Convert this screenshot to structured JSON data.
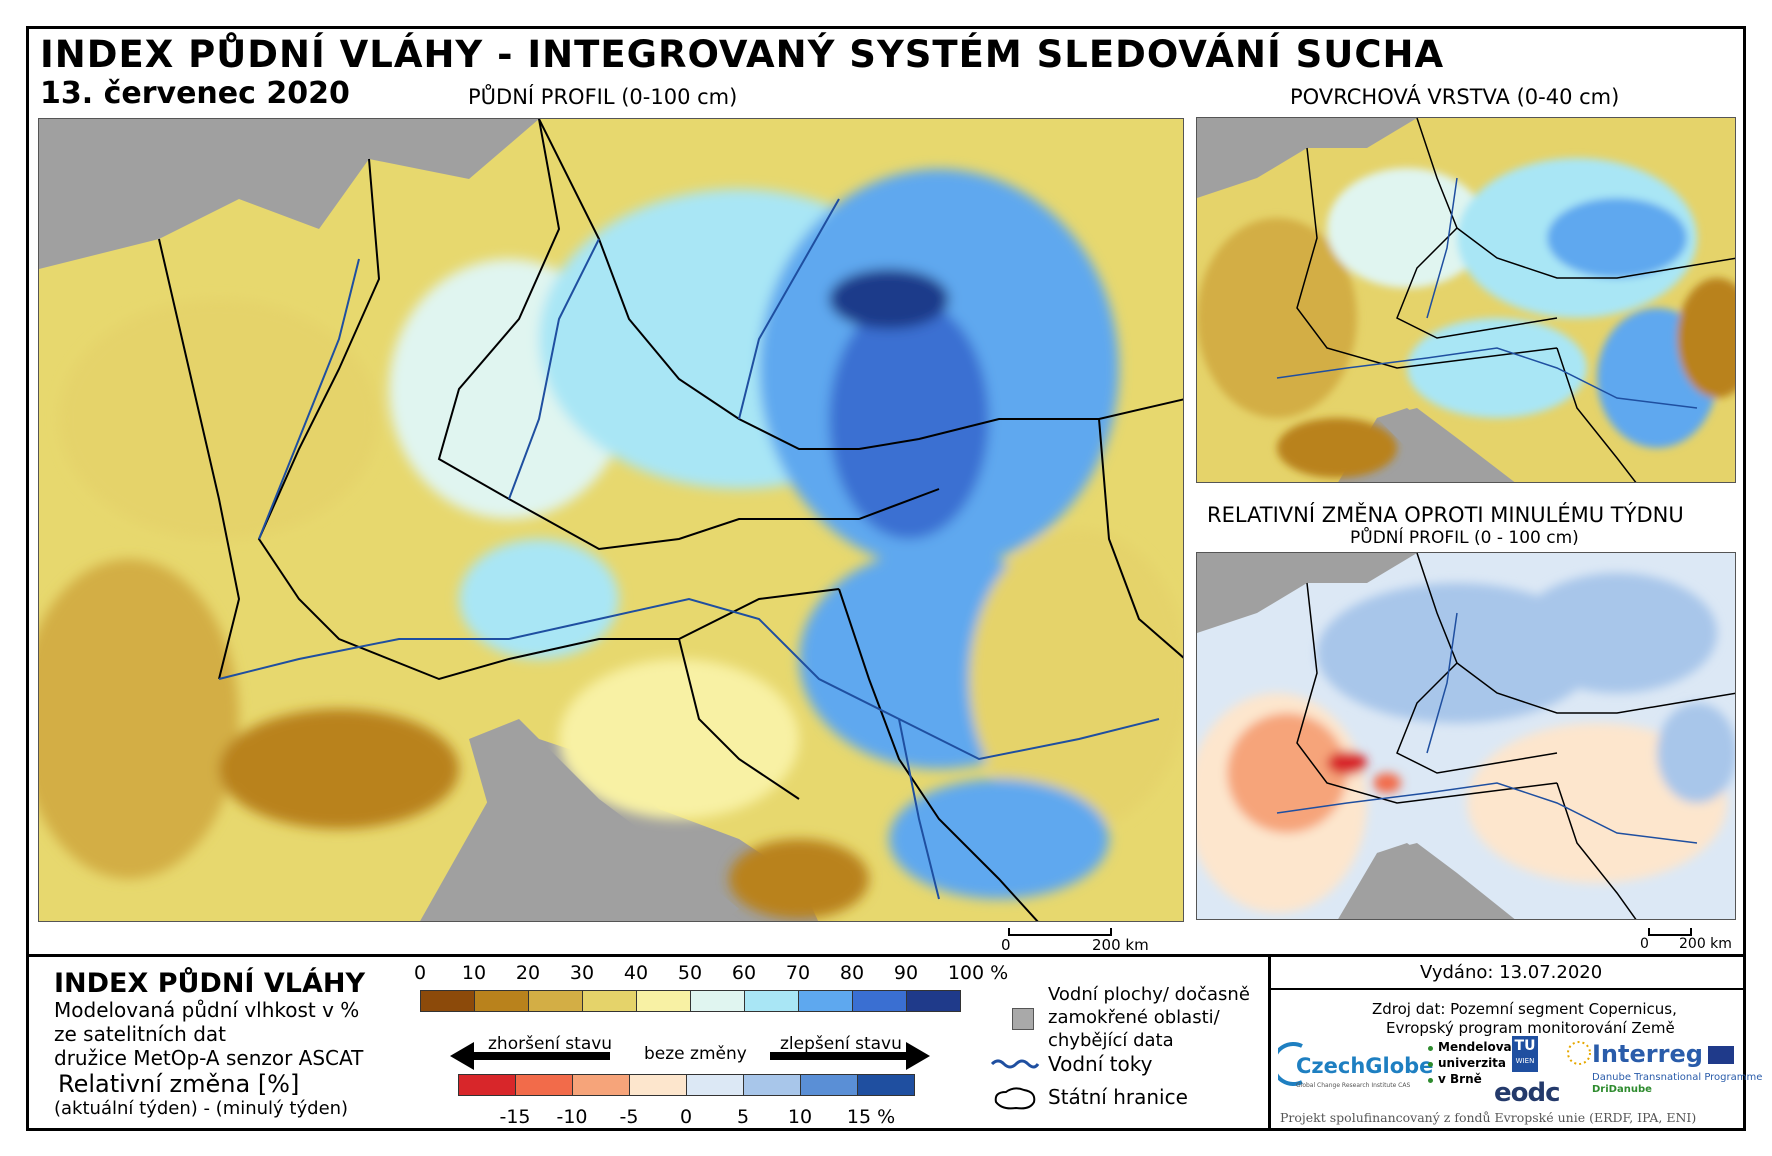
{
  "header": {
    "title": "INDEX PŮDNÍ VLÁHY - INTEGROVANÝ SYSTÉM SLEDOVÁNÍ SUCHA",
    "date": "13. červenec 2020",
    "main_map_caption": "PŮDNÍ PROFIL (0-100 cm)",
    "surface_map_caption": "POVRCHOVÁ VRSTVA (0-40 cm)",
    "change_title": "RELATIVNÍ ZMĚNA OPROTI MINULÉMU TÝDNU",
    "change_subtitle": "PŮDNÍ PROFIL (0 - 100 cm)"
  },
  "scalebars": {
    "main": {
      "zero": "0",
      "end": "200 km"
    },
    "small": {
      "zero": "0",
      "end": "200 km"
    }
  },
  "legend": {
    "title": "INDEX PŮDNÍ VLÁHY",
    "desc1": "Modelovaná půdní vlhkost v %",
    "desc2": "ze satelitních dat",
    "desc3": "družice MetOp-A senzor ASCAT",
    "change_title": "Relativní změna [%]",
    "change_desc": "(aktuální týden) - (minulý týden)",
    "moisture_ticks": [
      "0",
      "10",
      "20",
      "30",
      "40",
      "50",
      "60",
      "70",
      "80",
      "90",
      "100 %"
    ],
    "moisture_colors": [
      "#8c4a0a",
      "#b9821c",
      "#d3ae45",
      "#e5d36a",
      "#f8f1a4",
      "#e0f5f0",
      "#a9e6f5",
      "#5ea8ef",
      "#3a6fd2",
      "#1f3a8a"
    ],
    "arrow_worse": "zhoršení stavu",
    "arrow_none": "beze změny",
    "arrow_better": "zlepšení stavu",
    "change_ticks": [
      "-15",
      "-10",
      "-5",
      "0",
      "5",
      "10",
      "15 %"
    ],
    "change_colors": [
      "#d8262a",
      "#f26b4a",
      "#f6a47a",
      "#fde6cd",
      "#dce8f5",
      "#a8c6ea",
      "#5a8fd6",
      "#1f4fa0"
    ]
  },
  "symbols": {
    "water_line1": "Vodní plochy/ dočasně",
    "water_line2": "zamokřené oblasti/",
    "water_line3": "chybějící data",
    "rivers": "Vodní toky",
    "borders": "Státní hranice",
    "water_color": "#a9a9a9",
    "river_color": "#1f4fa0"
  },
  "info": {
    "issued": "Vydáno: 13.07.2020",
    "source1": "Zdroj dat: Pozemní segment Copernicus,",
    "source2": "Evropský program monitorování Země",
    "footer": "Projekt spolufinancovaný z fondů Evropské unie (ERDF, IPA, ENI)"
  },
  "logos": {
    "czechglobe": "CzechGlobe",
    "czechglobe_sub": "Global Change Research Institute CAS",
    "mendel1": "Mendelova",
    "mendel2": "univerzita",
    "mendel3": "v Brně",
    "tu1": "TU",
    "tu2": "WIEN",
    "eodc": "eodc",
    "interreg": "Interreg",
    "interreg_sub1": "Danube Transnational Programme",
    "interreg_sub2": "DriDanube"
  },
  "colors": {
    "sea": "#a0a0a0",
    "border": "#000000"
  }
}
